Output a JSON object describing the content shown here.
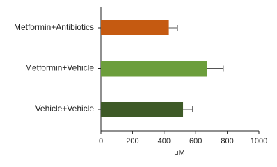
{
  "chart_data": {
    "type": "barh",
    "categories": [
      "Metformin+Antibiotics",
      "Metformin+Vehicle",
      "Vehicle+Vehicle"
    ],
    "values": [
      430,
      670,
      520
    ],
    "errors": [
      55,
      105,
      60
    ],
    "colors": [
      "#c55a11",
      "#6c9e3c",
      "#3e5a27"
    ],
    "x_label": "μM",
    "xlim": [
      0,
      1000
    ],
    "xticks": [
      0,
      200,
      400,
      600,
      800,
      1000
    ]
  }
}
